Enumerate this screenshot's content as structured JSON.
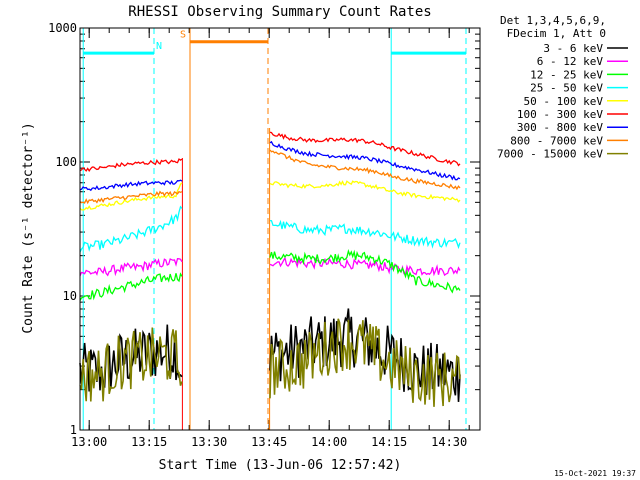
{
  "chart_data": {
    "type": "line",
    "title": "RHESSI Observing Summary Count Rates",
    "xlabel": "Start Time (13-Jun-06 12:57:42)",
    "ylabel": "Count Rate (s⁻¹ detector⁻¹)",
    "yscale": "log",
    "ylim": [
      1,
      1000
    ],
    "xlim_minutes": [
      0,
      100
    ],
    "x_tick_labels": [
      "13:00",
      "13:15",
      "13:30",
      "13:45",
      "14:00",
      "14:15",
      "14:30"
    ],
    "x_tick_minutes": [
      2.3,
      17.3,
      32.3,
      47.3,
      62.3,
      77.3,
      92.3
    ],
    "y_tick_labels": [
      "1",
      "10",
      "100",
      "1000"
    ],
    "y_tick_values": [
      1,
      10,
      100,
      1000
    ],
    "legend_header": [
      "Det 1,3,4,5,6,9,",
      "FDecim 1, Att 0"
    ],
    "legend_position": "right",
    "footer_date": "15-Oct-2021 19:37",
    "night_boundaries_minutes": [
      0.8,
      18.5,
      77.8,
      96.5
    ],
    "saa_boundaries_minutes": [
      27.5,
      47.0
    ],
    "flag_labels": {
      "night": "N",
      "saa": "S"
    },
    "flags": [
      {
        "name": "night",
        "label": "N",
        "color": "#00ffff",
        "level": 650,
        "segments": [
          [
            0.8,
            18.5
          ],
          [
            77.8,
            96.5
          ]
        ]
      },
      {
        "name": "saa",
        "label": "S",
        "color": "#ff7f00",
        "level": 790,
        "segments": [
          [
            27.5,
            47.0
          ]
        ]
      }
    ],
    "series": [
      {
        "name": "3 - 6 keV",
        "color": "#000000",
        "segments": [
          {
            "x": [
              0,
              5,
              10,
              15,
              20,
              24,
              25.5
            ],
            "y": [
              2.7,
              2.7,
              3.3,
              3.6,
              3.9,
              3.9,
              2.5
            ]
          },
          {
            "x": [
              47.5,
              52,
              57,
              62,
              66,
              70,
              74,
              78,
              84,
              90,
              95
            ],
            "y": [
              3.7,
              3.8,
              4.2,
              4.6,
              4.9,
              4.8,
              4.1,
              3.6,
              2.8,
              2.7,
              2.6
            ]
          }
        ]
      },
      {
        "name": "6 - 12 keV",
        "color": "#ff00ff",
        "segments": [
          {
            "x": [
              0,
              5,
              10,
              15,
              20,
              24,
              25.5
            ],
            "y": [
              15,
              15,
              16,
              16.5,
              17.5,
              18,
              18
            ]
          },
          {
            "x": [
              47.5,
              52,
              57,
              62,
              66,
              70,
              74,
              78,
              84,
              90,
              95
            ],
            "y": [
              18,
              18,
              17.5,
              17.5,
              17.5,
              17,
              17,
              16,
              15.5,
              15.5,
              15.5
            ]
          }
        ]
      },
      {
        "name": "12 - 25 keV",
        "color": "#00ff00",
        "segments": [
          {
            "x": [
              0,
              5,
              10,
              15,
              20,
              24,
              25.5
            ],
            "y": [
              10,
              10.5,
              11.5,
              12.5,
              13.5,
              14,
              14
            ]
          },
          {
            "x": [
              47.5,
              52,
              57,
              62,
              66,
              70,
              74,
              78,
              84,
              90,
              95
            ],
            "y": [
              20,
              19.5,
              19,
              19,
              20,
              20,
              19,
              17,
              13,
              12,
              11
            ]
          }
        ]
      },
      {
        "name": "25 - 50 keV",
        "color": "#00ffff",
        "segments": [
          {
            "x": [
              0,
              5,
              10,
              15,
              20,
              24,
              25.5
            ],
            "y": [
              23,
              24,
              26,
              29,
              33,
              38,
              45
            ]
          },
          {
            "x": [
              47.5,
              52,
              57,
              62,
              66,
              70,
              74,
              78,
              84,
              90,
              95
            ],
            "y": [
              35,
              33,
              31,
              31,
              32,
              31,
              30,
              28,
              26,
              25,
              25
            ]
          }
        ]
      },
      {
        "name": "50 - 100 keV",
        "color": "#ffff00",
        "segments": [
          {
            "x": [
              0,
              5,
              10,
              15,
              20,
              24,
              25.5
            ],
            "y": [
              45,
              47,
              50,
              53,
              55,
              56,
              70
            ]
          },
          {
            "x": [
              47.5,
              52,
              57,
              62,
              66,
              70,
              74,
              78,
              84,
              90,
              95
            ],
            "y": [
              70,
              67,
              66,
              67,
              70,
              69,
              65,
              60,
              56,
              54,
              52
            ]
          }
        ]
      },
      {
        "name": "100 - 300 keV",
        "color": "#ff0000",
        "segments": [
          {
            "x": [
              0,
              5,
              10,
              15,
              20,
              24,
              25.5
            ],
            "y": [
              88,
              90,
              95,
              98,
              100,
              100,
              105
            ]
          },
          {
            "x": [
              47.5,
              52,
              57,
              62,
              66,
              70,
              74,
              78,
              84,
              90,
              95
            ],
            "y": [
              165,
              152,
              145,
              145,
              147,
              145,
              138,
              127,
              115,
              104,
              97
            ]
          }
        ]
      },
      {
        "name": "300 - 800 keV",
        "color": "#0000ff",
        "segments": [
          {
            "x": [
              0,
              5,
              10,
              15,
              20,
              24,
              25.5
            ],
            "y": [
              63,
              64,
              67,
              69,
              70,
              70,
              72
            ]
          },
          {
            "x": [
              47.5,
              52,
              57,
              62,
              66,
              70,
              74,
              78,
              84,
              90,
              95
            ],
            "y": [
              140,
              125,
              115,
              112,
              110,
              108,
              103,
              96,
              88,
              80,
              75
            ]
          }
        ]
      },
      {
        "name": "800 - 7000 keV",
        "color": "#ff7f00",
        "segments": [
          {
            "x": [
              0,
              5,
              10,
              15,
              20,
              24,
              25.5
            ],
            "y": [
              50,
              52,
              54,
              56,
              58,
              58,
              60
            ]
          },
          {
            "x": [
              47.5,
              52,
              57,
              62,
              66,
              70,
              74,
              78,
              84,
              90,
              95
            ],
            "y": [
              125,
              108,
              96,
              92,
              90,
              88,
              85,
              78,
              72,
              68,
              64
            ]
          }
        ]
      },
      {
        "name": "7000 - 15000 keV",
        "color": "#808000",
        "segments": [
          {
            "x": [
              0,
              5,
              10,
              15,
              20,
              24,
              25.5
            ],
            "y": [
              2.6,
              2.6,
              3.2,
              3.4,
              3.6,
              3.5,
              2.3
            ]
          },
          {
            "x": [
              47.5,
              52,
              57,
              62,
              66,
              70,
              74,
              78,
              84,
              90,
              95
            ],
            "y": [
              2.8,
              3.0,
              3.3,
              4.2,
              4.6,
              4.4,
              3.7,
              3.0,
              2.5,
              2.4,
              2.4
            ]
          }
        ]
      }
    ]
  }
}
